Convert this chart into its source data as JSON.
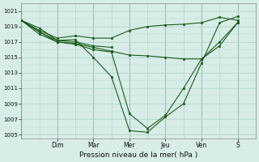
{
  "xlabel": "Pression niveau de la mer( hPa )",
  "background_color": "#d8ede8",
  "grid_color": "#b8d8cc",
  "grid_color_major": "#9abfb4",
  "line_color": "#1a5c1a",
  "ylim": [
    1004.5,
    1022
  ],
  "yticks": [
    1005,
    1007,
    1009,
    1011,
    1013,
    1015,
    1017,
    1019,
    1021
  ],
  "day_labels": [
    "Dim",
    "Mar",
    "Mer",
    "Jeu",
    "Ven",
    "S"
  ],
  "day_positions": [
    1,
    2,
    3,
    4,
    5,
    6
  ],
  "xlim": [
    0,
    6.5
  ],
  "lines": [
    {
      "x": [
        0.0,
        0.5,
        1.0,
        1.5,
        2.0,
        2.5,
        3.0,
        3.5,
        4.0,
        4.5,
        5.0,
        5.5,
        6.0
      ],
      "y": [
        1019.8,
        1018.8,
        1017.2,
        1017.3,
        1015.0,
        1012.5,
        1005.5,
        1005.3,
        1007.3,
        1009.0,
        1014.3,
        1019.5,
        1020.3
      ]
    },
    {
      "x": [
        0.0,
        0.5,
        1.0,
        1.5,
        2.0,
        2.5,
        3.0,
        3.5,
        4.0,
        4.5,
        5.0,
        5.5,
        6.0
      ],
      "y": [
        1019.8,
        1018.5,
        1017.5,
        1017.8,
        1017.5,
        1017.5,
        1018.5,
        1019.0,
        1019.2,
        1019.3,
        1019.5,
        1020.2,
        1019.8
      ]
    },
    {
      "x": [
        0.0,
        0.5,
        1.0,
        1.5,
        2.0,
        2.5,
        3.0,
        3.5,
        4.0,
        4.5,
        5.0,
        5.5,
        6.0
      ],
      "y": [
        1019.8,
        1018.3,
        1017.0,
        1016.8,
        1016.3,
        1015.8,
        1015.3,
        1015.2,
        1015.0,
        1014.8,
        1014.8,
        1016.5,
        1019.5
      ]
    },
    {
      "x": [
        0.0,
        0.5,
        1.0,
        1.5,
        2.0,
        2.5
      ],
      "y": [
        1019.8,
        1018.3,
        1017.2,
        1017.0,
        1016.5,
        1016.3
      ]
    },
    {
      "x": [
        0.0,
        0.5,
        1.0,
        1.5,
        2.0,
        2.5,
        3.0,
        3.5,
        4.0,
        4.5,
        5.0,
        5.5,
        6.0
      ],
      "y": [
        1019.8,
        1018.0,
        1017.0,
        1016.7,
        1016.0,
        1015.7,
        1007.7,
        1005.8,
        1007.5,
        1011.0,
        1014.8,
        1017.0,
        1019.5
      ]
    }
  ]
}
